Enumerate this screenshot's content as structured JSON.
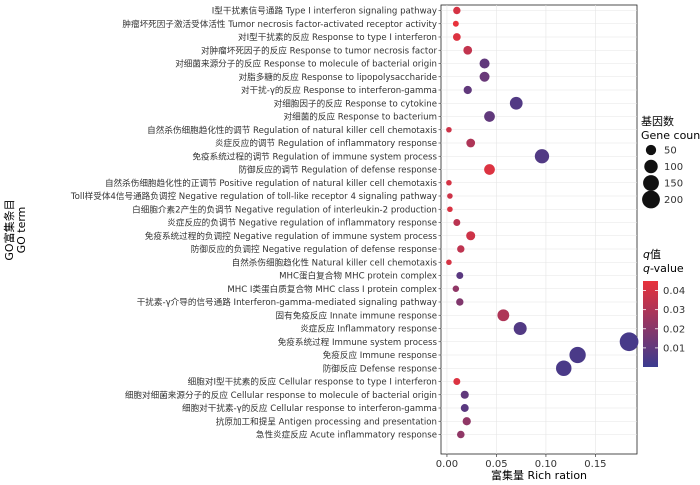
{
  "chart_data": {
    "type": "scatter",
    "subtype": "bubble",
    "xlabel": "富集量 Rich ration",
    "ylabel_line1": "GO富集条目",
    "ylabel_line2": "GO term",
    "xlim": [
      -0.006,
      0.192
    ],
    "xticks": [
      0.0,
      0.05,
      0.1,
      0.15
    ],
    "xtick_labels": [
      "0.00",
      "0.05",
      "0.10",
      "0.15"
    ],
    "grid": true,
    "size_legend": {
      "title_line1": "基因数",
      "title_line2": "Gene count",
      "values": [
        50,
        100,
        150,
        200
      ],
      "labels": [
        "50",
        "100",
        "150",
        "200"
      ]
    },
    "color_legend": {
      "title_line1": "q值",
      "title_line2": "q-value",
      "q_symbol": "q",
      "title_line1_rest": "值",
      "title_line2_rest": "-value",
      "range": [
        0.0,
        0.045
      ],
      "ticks": [
        0.01,
        0.02,
        0.03,
        0.04
      ],
      "tick_labels": [
        "0.01",
        "0.02",
        "0.03",
        "0.04"
      ],
      "low_color": "#3b3b8f",
      "high_color": "#e8323b"
    },
    "terms": [
      {
        "label": "I型干扰素信号通路 Type I interferon signaling pathway",
        "x": 0.01,
        "count": 10,
        "q": 0.04
      },
      {
        "label": "肿瘤坏死因子激活受体活性 Tumor necrosis factor-activated receptor activity",
        "x": 0.009,
        "count": 4,
        "q": 0.045
      },
      {
        "label": "对I型干扰素的反应 Response to type I interferon",
        "x": 0.01,
        "count": 12,
        "q": 0.042
      },
      {
        "label": "对肿瘤坏死因子的反应 Response to tumor necrosis factor",
        "x": 0.021,
        "count": 18,
        "q": 0.035
      },
      {
        "label": "对细菌来源分子的反应 Response to molecule of bacterial origin",
        "x": 0.038,
        "count": 28,
        "q": 0.01
      },
      {
        "label": "对脂多糖的反应 Response to lipopolysaccharide",
        "x": 0.038,
        "count": 27,
        "q": 0.012
      },
      {
        "label": "对干扰-γ的反应 Response to interferon-gamma",
        "x": 0.021,
        "count": 15,
        "q": 0.01
      },
      {
        "label": "对细胞因子的反应 Response to cytokine",
        "x": 0.07,
        "count": 55,
        "q": 0.006
      },
      {
        "label": "对细菌的反应 Response to bacterium",
        "x": 0.043,
        "count": 34,
        "q": 0.01
      },
      {
        "label": "自然杀伤细胞趋化性的调节 Regulation of natural killer cell chemotaxis",
        "x": 0.002,
        "count": 3,
        "q": 0.038
      },
      {
        "label": "炎症反应的调节 Regulation of inflammatory response",
        "x": 0.024,
        "count": 18,
        "q": 0.03
      },
      {
        "label": "免疫系统过程的调节 Regulation of immune system process",
        "x": 0.096,
        "count": 75,
        "q": 0.006
      },
      {
        "label": "防御反应的调节 Regulation of defense response",
        "x": 0.043,
        "count": 34,
        "q": 0.042
      },
      {
        "label": "自然杀伤细胞趋化性的正调节 Positive regulation of natural killer cell chemotaxis",
        "x": 0.002,
        "count": 3,
        "q": 0.04
      },
      {
        "label": "Toll样受体4信号通路负调控 Negative regulation of toll-like receptor 4 signaling pathway",
        "x": 0.003,
        "count": 3,
        "q": 0.038
      },
      {
        "label": "白细胞介素2产生的负调节 Negative regulation of interleukin-2 production",
        "x": 0.003,
        "count": 3,
        "q": 0.041
      },
      {
        "label": "炎症反应的负调节 Negative regulation of inflammatory response",
        "x": 0.01,
        "count": 8,
        "q": 0.033
      },
      {
        "label": "免疫系统过程的负调控 Negative regulation of immune system process",
        "x": 0.024,
        "count": 20,
        "q": 0.038
      },
      {
        "label": "防御反应的负调控 Negative regulation of defense response",
        "x": 0.014,
        "count": 10,
        "q": 0.034
      },
      {
        "label": "自然杀伤细胞趋化性 Natural killer cell chemotaxis",
        "x": 0.002,
        "count": 3,
        "q": 0.04
      },
      {
        "label": "MHC蛋白复合物 MHC protein complex",
        "x": 0.013,
        "count": 8,
        "q": 0.008
      },
      {
        "label": "MHC I类蛋白质复合物 MHC class I protein complex",
        "x": 0.009,
        "count": 6,
        "q": 0.022
      },
      {
        "label": "干扰素-γ介导的信号通路 Interferon-gamma-mediated signaling pathway",
        "x": 0.013,
        "count": 10,
        "q": 0.018
      },
      {
        "label": "固有免疫反应 Innate immune response",
        "x": 0.057,
        "count": 45,
        "q": 0.03
      },
      {
        "label": "炎症反应 Inflammatory response",
        "x": 0.074,
        "count": 58,
        "q": 0.006
      },
      {
        "label": "免疫系统过程 Immune system process",
        "x": 0.184,
        "count": 148,
        "q": 0.003
      },
      {
        "label": "免疫反应 Immune response",
        "x": 0.132,
        "count": 105,
        "q": 0.004
      },
      {
        "label": "防御反应 Defense response",
        "x": 0.118,
        "count": 92,
        "q": 0.004
      },
      {
        "label": "细胞对I型干扰素的反应 Cellular response to type I interferon",
        "x": 0.01,
        "count": 8,
        "q": 0.042
      },
      {
        "label": "细胞对细菌来源分子的反应 Cellular response to molecule of bacterial origin",
        "x": 0.018,
        "count": 14,
        "q": 0.01
      },
      {
        "label": "细胞对干扰素-γ的反应 Cellular response to interferon-gamma",
        "x": 0.018,
        "count": 13,
        "q": 0.008
      },
      {
        "label": "抗原加工和提呈 Antigen processing and presentation",
        "x": 0.02,
        "count": 15,
        "q": 0.022
      },
      {
        "label": "急性炎症反应 Acute inflammatory response",
        "x": 0.014,
        "count": 11,
        "q": 0.022
      }
    ]
  }
}
